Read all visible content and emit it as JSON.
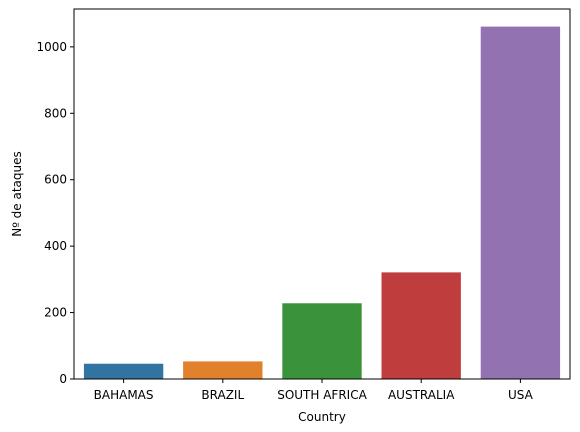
{
  "chart_data": {
    "type": "bar",
    "title": "",
    "xlabel": "Country",
    "ylabel": "Nº de ataques",
    "categories": [
      "BAHAMAS",
      "BRAZIL",
      "SOUTH AFRICA",
      "AUSTRALIA",
      "USA"
    ],
    "values": [
      46,
      53,
      228,
      321,
      1061
    ],
    "colors": [
      "#3274a1",
      "#e1812c",
      "#3a923a",
      "#c03d3e",
      "#9372b2"
    ],
    "ylim": [
      0,
      1114
    ],
    "yticks": [
      0,
      200,
      400,
      600,
      800,
      1000
    ],
    "grid": false,
    "legend": "none"
  }
}
